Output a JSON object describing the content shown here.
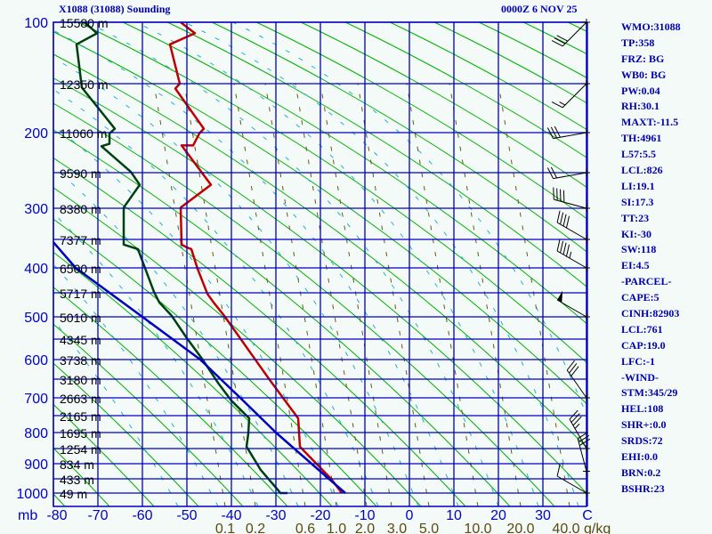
{
  "header": {
    "title": "X1088 (31088) Sounding",
    "datetime": "0000Z  6 NOV 25"
  },
  "stats": [
    "WMO:31088",
    "TP:358",
    "FRZ: BG",
    "WB0: BG",
    "PW:0.04",
    "RH:30.1",
    "MAXT:-11.5",
    "TH:4961",
    "L57:5.5",
    "LCL:826",
    "LI:19.1",
    "SI:17.3",
    "TT:23",
    "KI:-30",
    "SW:118",
    "EI:4.5",
    "-PARCEL-",
    "CAPE:5",
    "CINH:82903",
    "LCL:761",
    "CAP:19.0",
    "LFC:-1",
    "-WIND-",
    "STM:345/29",
    "HEL:108",
    "SHR+:0.0",
    "SRDS:72",
    "EHI:0.0",
    "BRN:0.2",
    "BSHR:23"
  ],
  "chart_data": {
    "type": "line",
    "title": "Skew-T sounding",
    "xlabel": "C",
    "ylabel": "mb",
    "xlim": [
      -80,
      40
    ],
    "ylim": [
      1050,
      100
    ],
    "pressure_ticks": [
      {
        "p": 100,
        "label": "100"
      },
      {
        "p": 200,
        "label": "200"
      },
      {
        "p": 300,
        "label": "300"
      },
      {
        "p": 400,
        "label": "400"
      },
      {
        "p": 500,
        "label": "500"
      },
      {
        "p": 600,
        "label": "600"
      },
      {
        "p": 700,
        "label": "700"
      },
      {
        "p": 800,
        "label": "800"
      },
      {
        "p": 900,
        "label": "900"
      },
      {
        "p": 1000,
        "label": "1000"
      }
    ],
    "height_labels": [
      {
        "p": 100,
        "label": "15580 m"
      },
      {
        "p": 150,
        "label": "12350 m"
      },
      {
        "p": 200,
        "label": "11060 m"
      },
      {
        "p": 250,
        "label": "9590 m"
      },
      {
        "p": 300,
        "label": "8380 m"
      },
      {
        "p": 350,
        "label": "7377 m"
      },
      {
        "p": 400,
        "label": "6500 m"
      },
      {
        "p": 450,
        "label": "5717 m"
      },
      {
        "p": 500,
        "label": "5010 m"
      },
      {
        "p": 550,
        "label": "4345 m"
      },
      {
        "p": 600,
        "label": "3738 m"
      },
      {
        "p": 650,
        "label": "3180 m"
      },
      {
        "p": 700,
        "label": "2663 m"
      },
      {
        "p": 750,
        "label": "2165 m"
      },
      {
        "p": 800,
        "label": "1695 m"
      },
      {
        "p": 850,
        "label": "1254 m"
      },
      {
        "p": 900,
        "label": "834 m"
      },
      {
        "p": 950,
        "label": "433 m"
      },
      {
        "p": 1000,
        "label": "49 m"
      }
    ],
    "temp_ticks": [
      {
        "t": -80,
        "label": "-80"
      },
      {
        "t": -70,
        "label": "-70"
      },
      {
        "t": -60,
        "label": "-60"
      },
      {
        "t": -50,
        "label": "-50"
      },
      {
        "t": -40,
        "label": "-40"
      },
      {
        "t": -30,
        "label": "-30"
      },
      {
        "t": -20,
        "label": "-20"
      },
      {
        "t": -10,
        "label": "-10"
      },
      {
        "t": 0,
        "label": "0"
      },
      {
        "t": 10,
        "label": "10"
      },
      {
        "t": 20,
        "label": "20"
      },
      {
        "t": 30,
        "label": "30"
      },
      {
        "t": 40,
        "label": "C"
      }
    ],
    "mb_label": "mb",
    "mixing_ratio_labels": [
      "0.1",
      "0.2",
      "0.6",
      "1.0",
      "2.0",
      "3.0",
      "5.0",
      "10.0",
      "20.0",
      "40.0"
    ],
    "mixing_ratio_unit": "g/kg",
    "series": [
      {
        "name": "temperature",
        "color": "#c00000",
        "points": [
          [
            100,
            -51.4
          ],
          [
            109,
            -48.2
          ],
          [
            118,
            -53.8
          ],
          [
            150,
            -51.6
          ],
          [
            155,
            -52.6
          ],
          [
            196,
            -46.2
          ],
          [
            201,
            -47.2
          ],
          [
            216,
            -48.6
          ],
          [
            216,
            -51.2
          ],
          [
            267,
            -44.6
          ],
          [
            299,
            -51.4
          ],
          [
            359,
            -51.2
          ],
          [
            364,
            -50
          ],
          [
            367,
            -49
          ],
          [
            402,
            -47.6
          ],
          [
            452,
            -45.4
          ],
          [
            470,
            -44
          ],
          [
            498,
            -41.6
          ],
          [
            652,
            -31.4
          ],
          [
            758,
            -25
          ],
          [
            844,
            -24.6
          ],
          [
            859,
            -23.6
          ],
          [
            950,
            -17.6
          ],
          [
            1000,
            -15.2
          ]
        ]
      },
      {
        "name": "dewpoint",
        "color": "#004010",
        "points": [
          [
            100,
            -73
          ],
          [
            109,
            -70.2
          ],
          [
            118,
            -74.8
          ],
          [
            154,
            -73.6
          ],
          [
            196,
            -66.2
          ],
          [
            201,
            -67.4
          ],
          [
            214,
            -67.4
          ],
          [
            217,
            -69.2
          ],
          [
            249,
            -62.6
          ],
          [
            267,
            -60.6
          ],
          [
            299,
            -64.2
          ],
          [
            359,
            -64.2
          ],
          [
            367,
            -61
          ],
          [
            388,
            -60
          ],
          [
            448,
            -57.4
          ],
          [
            470,
            -56.2
          ],
          [
            498,
            -53.4
          ],
          [
            548,
            -50
          ],
          [
            598,
            -46.6
          ],
          [
            660,
            -43
          ],
          [
            708,
            -40
          ],
          [
            758,
            -36
          ],
          [
            803,
            -36.2
          ],
          [
            844,
            -36.6
          ],
          [
            921,
            -33.4
          ],
          [
            988,
            -29.6
          ],
          [
            1000,
            -29
          ],
          [
            1000,
            -27.4
          ]
        ]
      },
      {
        "name": "parcel",
        "color": "#0000c0",
        "points": [
          [
            1000,
            -14.4
          ],
          [
            900,
            -22
          ],
          [
            800,
            -30
          ],
          [
            700,
            -38
          ],
          [
            600,
            -47
          ],
          [
            500,
            -60
          ],
          [
            400,
            -75
          ],
          [
            355,
            -80
          ]
        ]
      }
    ],
    "winds": [
      {
        "p": 100,
        "dir": 225,
        "spd": 30
      },
      {
        "p": 150,
        "dir": 225,
        "spd": 15
      },
      {
        "p": 200,
        "dir": 260,
        "spd": 30
      },
      {
        "p": 250,
        "dir": 260,
        "spd": 20
      },
      {
        "p": 300,
        "dir": 285,
        "spd": 40
      },
      {
        "p": 350,
        "dir": 300,
        "spd": 40
      },
      {
        "p": 400,
        "dir": 300,
        "spd": 45
      },
      {
        "p": 500,
        "dir": 300,
        "spd": 50
      },
      {
        "p": 700,
        "dir": 325,
        "spd": 30
      },
      {
        "p": 850,
        "dir": 330,
        "spd": 35
      },
      {
        "p": 925,
        "dir": 345,
        "spd": 30
      },
      {
        "p": 1000,
        "dir": 300,
        "spd": 10
      }
    ]
  }
}
